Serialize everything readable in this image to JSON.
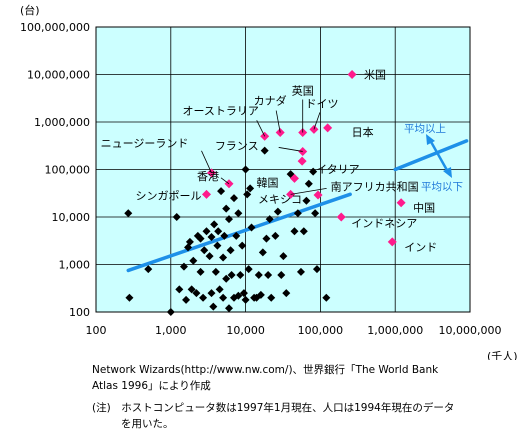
{
  "chart_data": {
    "type": "scatter",
    "xscale": "log",
    "yscale": "log",
    "xlim": [
      100,
      10000000
    ],
    "ylim": [
      100,
      100000000
    ],
    "xlabel": "(千人)",
    "ylabel": "(台)",
    "xticks": [
      {
        "v": 100,
        "label": "100"
      },
      {
        "v": 1000,
        "label": "1,000"
      },
      {
        "v": 10000,
        "label": "10,000"
      },
      {
        "v": 100000,
        "label": "100,000"
      },
      {
        "v": 1000000,
        "label": "1,000,000"
      },
      {
        "v": 10000000,
        "label": "10,000,000"
      }
    ],
    "yticks": [
      {
        "v": 100,
        "label": "100"
      },
      {
        "v": 1000,
        "label": "1,000"
      },
      {
        "v": 10000,
        "label": "10,000"
      },
      {
        "v": 100000,
        "label": "100,000"
      },
      {
        "v": 1000000,
        "label": "1,000,000"
      },
      {
        "v": 10000000,
        "label": "10,000,000"
      },
      {
        "v": 100000000,
        "label": "100,000,000"
      }
    ],
    "grid": true,
    "colors": {
      "background": "#ccffff",
      "highlight": "#ff1a8c",
      "other": "#000000",
      "trend": "#1e90e8"
    },
    "highlighted": [
      {
        "label": "米国",
        "x": 265000,
        "y": 10000000
      },
      {
        "label": "英国",
        "x": 58000,
        "y": 600000
      },
      {
        "label": "ドイツ",
        "x": 82000,
        "y": 700000
      },
      {
        "label": "日本",
        "x": 125000,
        "y": 750000
      },
      {
        "label": "カナダ",
        "x": 29000,
        "y": 600000
      },
      {
        "label": "オーストラリア",
        "x": 18000,
        "y": 500000
      },
      {
        "label": "フランス",
        "x": 58000,
        "y": 240000
      },
      {
        "label": "イタリア",
        "x": 57000,
        "y": 150000
      },
      {
        "label": "ニュージーランド",
        "x": 3500,
        "y": 85000
      },
      {
        "label": "韓国",
        "x": 45000,
        "y": 65000
      },
      {
        "label": "香港",
        "x": 6000,
        "y": 50000
      },
      {
        "label": "南アフリカ共和国",
        "x": 40000,
        "y": 30000
      },
      {
        "label": "シンガポール",
        "x": 3000,
        "y": 30000
      },
      {
        "label": "メキシコ",
        "x": 93000,
        "y": 29000
      },
      {
        "label": "中国",
        "x": 1200000,
        "y": 20000
      },
      {
        "label": "インドネシア",
        "x": 190000,
        "y": 10000
      },
      {
        "label": "インド",
        "x": 914000,
        "y": 3000
      }
    ],
    "others": [
      [
        270,
        12000
      ],
      [
        280,
        200
      ],
      [
        500,
        800
      ],
      [
        1000,
        100
      ],
      [
        1200,
        10000
      ],
      [
        1300,
        300
      ],
      [
        1500,
        900
      ],
      [
        1600,
        180
      ],
      [
        1700,
        2300
      ],
      [
        1800,
        3000
      ],
      [
        1900,
        300
      ],
      [
        2000,
        1200
      ],
      [
        2200,
        250
      ],
      [
        2300,
        4000
      ],
      [
        2500,
        700
      ],
      [
        2500,
        3500
      ],
      [
        2700,
        200
      ],
      [
        2800,
        2000
      ],
      [
        3000,
        5000
      ],
      [
        3000,
        30000
      ],
      [
        3300,
        1500
      ],
      [
        3500,
        250
      ],
      [
        3500,
        3800
      ],
      [
        3700,
        130
      ],
      [
        3800,
        7000
      ],
      [
        4000,
        700
      ],
      [
        4200,
        2500
      ],
      [
        4300,
        5000
      ],
      [
        4500,
        300
      ],
      [
        4700,
        35000
      ],
      [
        5000,
        200
      ],
      [
        5000,
        1400
      ],
      [
        5200,
        4000
      ],
      [
        5500,
        500
      ],
      [
        5500,
        15000
      ],
      [
        6000,
        120
      ],
      [
        6000,
        9000
      ],
      [
        6300,
        2000
      ],
      [
        6500,
        600
      ],
      [
        7000,
        200
      ],
      [
        7000,
        25000
      ],
      [
        7500,
        4000
      ],
      [
        8000,
        220
      ],
      [
        8000,
        12000
      ],
      [
        8500,
        600
      ],
      [
        9000,
        2500
      ],
      [
        9500,
        250
      ],
      [
        10000,
        100000
      ],
      [
        10000,
        180
      ],
      [
        10500,
        30000
      ],
      [
        11000,
        800
      ],
      [
        11500,
        40000
      ],
      [
        12000,
        6000
      ],
      [
        13000,
        200
      ],
      [
        14000,
        200
      ],
      [
        15000,
        600
      ],
      [
        16000,
        230
      ],
      [
        17000,
        1800
      ],
      [
        18000,
        250000
      ],
      [
        19000,
        3500
      ],
      [
        20000,
        600
      ],
      [
        21000,
        9000
      ],
      [
        22000,
        200
      ],
      [
        25000,
        4000
      ],
      [
        27000,
        13000
      ],
      [
        30000,
        600
      ],
      [
        32000,
        1500
      ],
      [
        35000,
        250
      ],
      [
        40000,
        80000
      ],
      [
        45000,
        5000
      ],
      [
        50000,
        12000
      ],
      [
        55000,
        700
      ],
      [
        60000,
        5000
      ],
      [
        65000,
        22000
      ],
      [
        70000,
        50000
      ],
      [
        80000,
        90000
      ],
      [
        85000,
        12000
      ],
      [
        90000,
        800
      ],
      [
        120000,
        200
      ]
    ],
    "trend": [
      [
        270,
        750
      ],
      [
        250000,
        30000
      ]
    ],
    "trend_upper": [
      [
        1000000,
        100000
      ],
      [
        9000000,
        400000
      ]
    ],
    "annotation_above": "平均以上",
    "annotation_below": "平均以下"
  },
  "notes": [
    "Network Wizards(http://www.nw.com/)、世界銀行「The World Bank",
    "Atlas 1996」により作成",
    "(注)　ホストコンピュータ数は1997年1月現在、人口は1994年現在のデータ",
    "を用いた。"
  ]
}
